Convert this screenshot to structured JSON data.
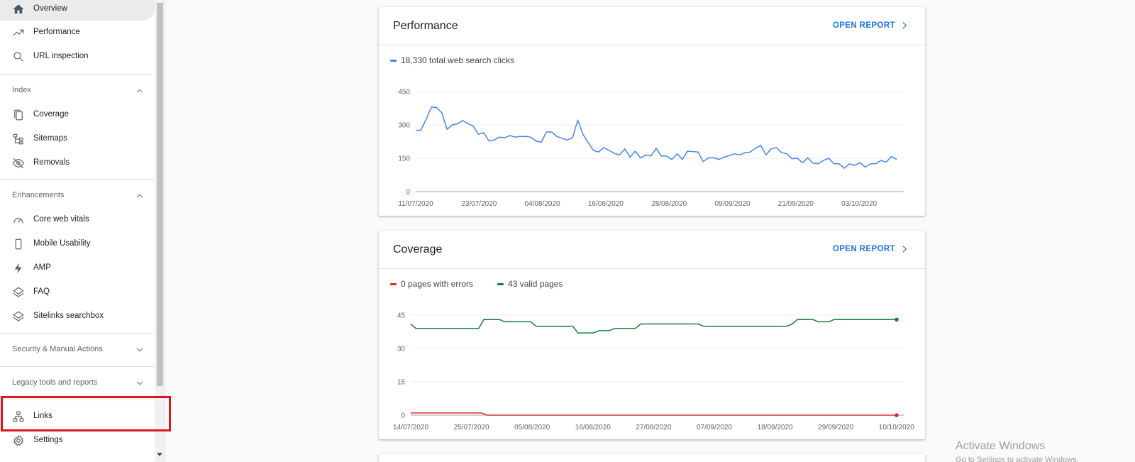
{
  "sidebar": {
    "top_items": [
      {
        "label": "Overview",
        "icon": "home-icon",
        "active": true
      },
      {
        "label": "Performance",
        "icon": "trending-up-icon"
      },
      {
        "label": "URL inspection",
        "icon": "search-icon"
      }
    ],
    "sections": {
      "index": {
        "label": "Index",
        "expanded": true,
        "items": [
          {
            "label": "Coverage",
            "icon": "file-copy-icon"
          },
          {
            "label": "Sitemaps",
            "icon": "sitemap-icon"
          },
          {
            "label": "Removals",
            "icon": "eye-off-icon"
          }
        ]
      },
      "enhancements": {
        "label": "Enhancements",
        "expanded": true,
        "items": [
          {
            "label": "Core web vitals",
            "icon": "gauge-icon"
          },
          {
            "label": "Mobile Usability",
            "icon": "smartphone-icon"
          },
          {
            "label": "AMP",
            "icon": "bolt-icon"
          },
          {
            "label": "FAQ",
            "icon": "layers-icon"
          },
          {
            "label": "Sitelinks searchbox",
            "icon": "layers-icon"
          }
        ]
      },
      "security": {
        "label": "Security & Manual Actions",
        "expanded": false
      },
      "legacy": {
        "label": "Legacy tools and reports",
        "expanded": false
      }
    },
    "bottom_items": [
      {
        "label": "Links",
        "icon": "links-network-icon",
        "highlighted": true
      },
      {
        "label": "Settings",
        "icon": "gear-icon"
      }
    ]
  },
  "performance_card": {
    "title": "Performance",
    "link": "OPEN REPORT",
    "legend": "18,330 total web search clicks",
    "color": "#4285f4"
  },
  "coverage_card": {
    "title": "Coverage",
    "link": "OPEN REPORT",
    "legend_errors": "0 pages with errors",
    "legend_valid": "43 valid pages",
    "error_color": "#d93025",
    "valid_color": "#188038"
  },
  "watermark": {
    "title": "Activate Windows",
    "subtitle": "Go to Settings to activate Windows."
  },
  "chart_data": [
    {
      "type": "line",
      "title": "Performance",
      "ylim": [
        0,
        450
      ],
      "yticks": [
        "0",
        "150",
        "300",
        "450"
      ],
      "xtick_labels": [
        "11/07/2020",
        "23/07/2020",
        "04/08/2020",
        "16/08/2020",
        "28/08/2020",
        "09/09/2020",
        "21/09/2020",
        "03/10/2020"
      ],
      "grid": true,
      "series": [
        {
          "name": "18,330 total web search clicks",
          "color": "#4285f4",
          "values": [
            275,
            277,
            325,
            380,
            378,
            355,
            280,
            300,
            305,
            320,
            305,
            295,
            258,
            265,
            228,
            232,
            245,
            242,
            252,
            245,
            248,
            248,
            245,
            228,
            222,
            268,
            268,
            248,
            240,
            232,
            242,
            322,
            258,
            220,
            185,
            178,
            198,
            185,
            172,
            165,
            192,
            155,
            182,
            152,
            165,
            160,
            195,
            160,
            160,
            145,
            170,
            145,
            182,
            180,
            178,
            135,
            152,
            152,
            145,
            155,
            162,
            170,
            165,
            175,
            178,
            195,
            208,
            165,
            192,
            198,
            175,
            170,
            148,
            150,
            130,
            152,
            128,
            125,
            140,
            150,
            125,
            125,
            105,
            125,
            118,
            130,
            110,
            125,
            125,
            140,
            132,
            158,
            145
          ]
        }
      ]
    },
    {
      "type": "line",
      "title": "Coverage",
      "ylim": [
        0,
        45
      ],
      "yticks": [
        "0",
        "15",
        "30",
        "45"
      ],
      "xtick_labels": [
        "14/07/2020",
        "25/07/2020",
        "05/08/2020",
        "16/08/2020",
        "27/08/2020",
        "07/09/2020",
        "18/09/2020",
        "29/09/2020",
        "10/10/2020"
      ],
      "grid": true,
      "series": [
        {
          "name": "0 pages with errors",
          "color": "#d93025",
          "values": [
            1,
            1,
            1,
            1,
            1,
            1,
            1,
            1,
            1,
            1,
            1,
            1,
            1,
            1,
            0,
            0,
            0,
            0,
            0,
            0,
            0,
            0,
            0,
            0,
            0,
            0,
            0,
            0,
            0,
            0,
            0,
            0,
            0,
            0,
            0,
            0,
            0,
            0,
            0,
            0,
            0,
            0,
            0,
            0,
            0,
            0,
            0,
            0,
            0,
            0,
            0,
            0,
            0,
            0,
            0,
            0,
            0,
            0,
            0,
            0,
            0,
            0,
            0,
            0,
            0,
            0,
            0,
            0,
            0,
            0,
            0,
            0,
            0,
            0,
            0,
            0,
            0,
            0,
            0,
            0,
            0,
            0,
            0,
            0,
            0,
            0,
            0,
            0,
            0,
            0
          ]
        },
        {
          "name": "43 valid pages",
          "color": "#188038",
          "values": [
            41,
            39,
            39,
            39,
            39,
            39,
            39,
            39,
            39,
            39,
            39,
            39,
            39,
            39,
            43,
            43,
            43,
            43,
            42,
            42,
            42,
            42,
            42,
            42,
            40,
            40,
            40,
            40,
            40,
            40,
            40,
            40,
            37,
            37,
            37,
            37,
            38,
            38,
            38,
            39,
            39,
            39,
            39,
            39,
            41,
            41,
            41,
            41,
            41,
            41,
            41,
            41,
            41,
            41,
            41,
            41,
            40,
            40,
            40,
            40,
            40,
            40,
            40,
            40,
            40,
            40,
            40,
            40,
            40,
            40,
            40,
            40,
            40,
            41,
            43,
            43,
            43,
            43,
            42,
            42,
            42,
            43,
            43,
            43,
            43,
            43,
            43,
            43,
            43,
            43,
            43,
            43,
            43,
            43
          ]
        }
      ]
    }
  ]
}
